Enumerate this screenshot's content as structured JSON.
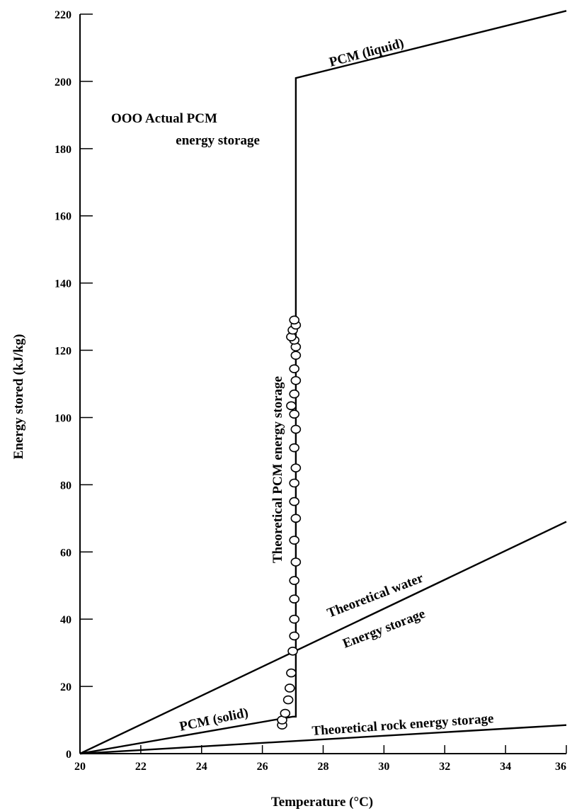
{
  "chart_data": {
    "type": "line",
    "xlabel": "Temperature (°C)",
    "ylabel": "Energy stored (kJ/kg)",
    "xlim": [
      20,
      36
    ],
    "ylim": [
      0,
      220
    ],
    "x_ticks": [
      20,
      22,
      24,
      26,
      28,
      30,
      32,
      34,
      36
    ],
    "y_ticks": [
      0,
      20,
      40,
      60,
      80,
      100,
      120,
      140,
      160,
      180,
      200,
      220
    ],
    "grid": false,
    "series": [
      {
        "name": "PCM (solid)",
        "points": [
          [
            20,
            0
          ],
          [
            27.0,
            11
          ],
          [
            27.1,
            11
          ],
          [
            27.1,
            201
          ],
          [
            36,
            221
          ]
        ]
      },
      {
        "name": "Theoretical water energy storage",
        "points": [
          [
            20,
            0
          ],
          [
            36,
            69
          ]
        ]
      },
      {
        "name": "Theoretical rock energy storage",
        "points": [
          [
            20,
            0
          ],
          [
            36,
            8.5
          ]
        ]
      },
      {
        "name": "Actual PCM energy storage",
        "markers": "circle",
        "points": [
          [
            26.65,
            8.5
          ],
          [
            26.65,
            10
          ],
          [
            26.75,
            12
          ],
          [
            26.85,
            16
          ],
          [
            26.9,
            19.5
          ],
          [
            26.95,
            24
          ],
          [
            27.0,
            30.5
          ],
          [
            27.05,
            35
          ],
          [
            27.05,
            40
          ],
          [
            27.05,
            46
          ],
          [
            27.05,
            51.5
          ],
          [
            27.1,
            57
          ],
          [
            27.05,
            63.5
          ],
          [
            27.1,
            70
          ],
          [
            27.05,
            75
          ],
          [
            27.05,
            80.5
          ],
          [
            27.1,
            85
          ],
          [
            27.05,
            91
          ],
          [
            27.1,
            96.5
          ],
          [
            27.05,
            101
          ],
          [
            26.95,
            103.5
          ],
          [
            27.05,
            107
          ],
          [
            27.1,
            111
          ],
          [
            27.05,
            114.5
          ],
          [
            27.1,
            118.5
          ],
          [
            27.1,
            121
          ],
          [
            27.05,
            123
          ],
          [
            26.95,
            124
          ],
          [
            27.0,
            126
          ],
          [
            27.1,
            127.5
          ],
          [
            27.05,
            129
          ]
        ]
      }
    ],
    "annotations": {
      "legend_line1": "OOO Actual PCM",
      "legend_line2": "energy storage",
      "pcm_liquid": "PCM (liquid)",
      "pcm_solid": "PCM (solid)",
      "theoretical_pcm": "Theoretical PCM energy storage",
      "water_line1": "Theoretical water",
      "water_line2": "Energy storage",
      "rock": "Theoretical rock energy storage"
    },
    "colors": {
      "line": "#000000",
      "background": "#ffffff"
    }
  }
}
